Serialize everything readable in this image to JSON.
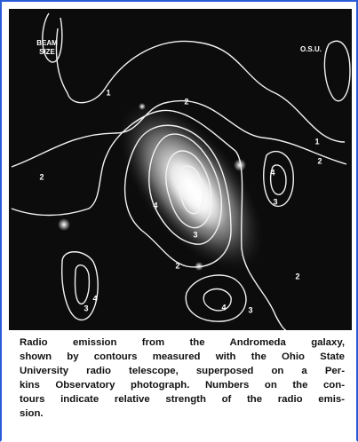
{
  "figure": {
    "beam_label": "BEAM SIZE",
    "credit": "O.S.U.",
    "contour_labels": [
      "1",
      "2",
      "1",
      "2",
      "4",
      "3",
      "2",
      "4",
      "3",
      "4",
      "3",
      "4",
      "3",
      "2",
      "2"
    ]
  },
  "caption": {
    "lines": [
      "Radio emission from the Andromeda galaxy,",
      "shown by contours measured with the Ohio State",
      "University radio telescope, superposed on a Per-",
      "kins Observatory photograph. Numbers on the con-",
      "tours indicate relative strength of the radio emis-",
      "sion."
    ]
  }
}
